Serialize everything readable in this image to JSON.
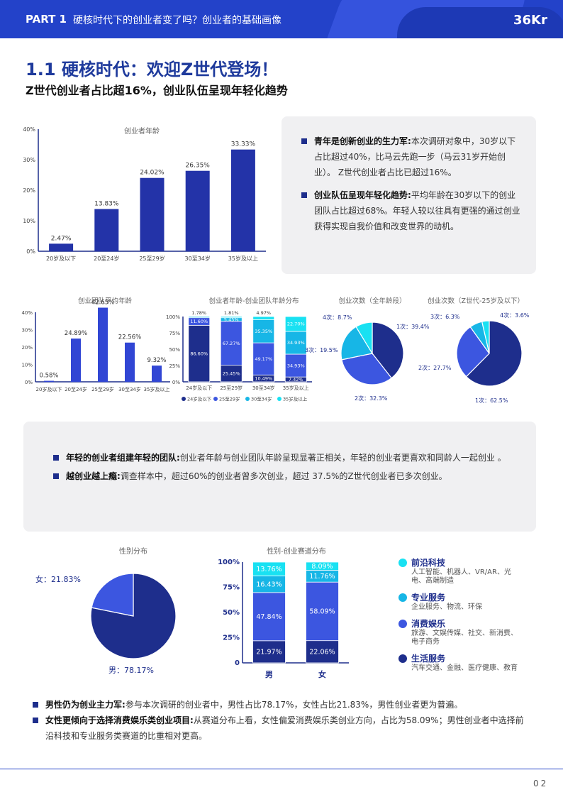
{
  "header": {
    "part": "PART 1",
    "subject": "硬核时代下的创业者变了吗？创业者的基础画像",
    "logo_text": "36Kr"
  },
  "title": "1.1 硬核时代：欢迎Z世代登场！",
  "subtitle": "Z世代创业者占比超16%，创业队伍呈现年轻化趋势",
  "panel1": {
    "items": [
      {
        "bold": "青年是创新创业的生力军:",
        "text": "本次调研对象中，30岁以下占比超过40%，比马云先跑一步（马云31岁开始创业）。 Z世代创业者占比已超过16%。"
      },
      {
        "bold": "创业队伍呈现年轻化趋势:",
        "text": "平均年龄在30岁以下的创业团队占比超过68%。年轻人较以往具有更强的通过创业获得实现自我价值和改变世界的动机。"
      }
    ]
  },
  "panel2": {
    "items": [
      {
        "bold": "年轻的创业者组建年轻的团队:",
        "text": "创业者年龄与创业团队年龄呈现显著正相关，年轻的创业者更喜欢和同龄人一起创业 。"
      },
      {
        "bold": "越创业越上瘾:",
        "text": "调查样本中，超过60%的创业者曾多次创业，超过 37.5%的Z世代创业者已多次创业。"
      }
    ]
  },
  "bottom_notes": {
    "items": [
      {
        "bold": "男性仍为创业主力军:",
        "text": "参与本次调研的创业者中，男性占比78.17%，女性占比21.83%，男性创业者更为普遍。"
      },
      {
        "bold": "女性更倾向于选择消费娱乐类创业项目:",
        "text": "从赛道分布上看，女性偏爱消费娱乐类创业方向，占比为58.09%；男性创业者中选择前沿科技和专业服务类赛道的比重相对更高。"
      }
    ]
  },
  "track_legend": [
    {
      "title": "前沿科技",
      "desc": "人工智能、机器人、VR/AR、光电、高端制造",
      "color": "#19e1f2"
    },
    {
      "title": "专业服务",
      "desc": "企业服务、物流、环保",
      "color": "#17b6e6"
    },
    {
      "title": "消费娱乐",
      "desc": "旅游、文娱传媒、社交、新消费、电子商务",
      "color": "#3c56e0"
    },
    {
      "title": "生活服务",
      "desc": "汽车交通、金融、医疗健康、教育",
      "color": "#1e2e8c"
    }
  ],
  "page_number": "02",
  "chart_data": [
    {
      "id": "founder_age",
      "type": "bar",
      "title": "创业者年龄",
      "categories": [
        "20岁及以下",
        "20至24岁",
        "25至29岁",
        "30至34岁",
        "35岁及以上"
      ],
      "values": [
        2.47,
        13.83,
        24.02,
        26.35,
        33.33
      ],
      "ylim": [
        0,
        40
      ],
      "yticks": [
        "0%",
        "10%",
        "20%",
        "30%",
        "40%"
      ],
      "value_labels": [
        "2.47%",
        "13.83%",
        "24.02%",
        "26.35%",
        "33.33%"
      ],
      "color": "#2333a8"
    },
    {
      "id": "team_avg_age",
      "type": "bar",
      "title": "创业团队平均年龄",
      "categories": [
        "20岁及以下",
        "20至24岁",
        "25至29岁",
        "30至34岁",
        "35岁及以上"
      ],
      "values": [
        0.58,
        24.89,
        42.65,
        22.56,
        9.32
      ],
      "ylim": [
        0,
        40
      ],
      "yticks": [
        "0%",
        "10%",
        "20%",
        "30%",
        "40%"
      ],
      "value_labels": [
        "0.58%",
        "24.89%",
        "42.65%",
        "22.56%",
        "9.32%"
      ],
      "color": "#3146d4"
    },
    {
      "id": "age_vs_team",
      "type": "bar",
      "stacked": true,
      "title": "创业者年龄-创业团队年龄分布",
      "categories": [
        "24岁及以下",
        "25至29岁",
        "30至34岁",
        "35岁及以上"
      ],
      "yticks": [
        "0%",
        "25%",
        "50%",
        "75%",
        "100%"
      ],
      "series": [
        {
          "name": "24岁及以下",
          "values": [
            86.6,
            25.45,
            10.49,
            7.42
          ],
          "labels": [
            "86.60%",
            "25.45%",
            "10.49%",
            "7.42%"
          ],
          "color": "#1e2e8c"
        },
        {
          "name": "25至29岁",
          "values": [
            11.6,
            67.27,
            49.17,
            34.93
          ],
          "labels": [
            "11.60%",
            "67.27%",
            "49.17%",
            "34.93%"
          ],
          "color": "#3c56e0"
        },
        {
          "name": "30至34岁",
          "values": [
            1.78,
            5.45,
            35.35,
            34.93
          ],
          "labels": [
            "",
            "5.45%",
            "35.35%",
            "34.93%"
          ],
          "color": "#17b6e6"
        },
        {
          "name": "35岁及以上",
          "values": [
            0.02,
            1.81,
            4.97,
            22.7
          ],
          "labels": [
            "",
            "",
            "",
            "22.70%"
          ],
          "color": "#19e1f2"
        }
      ],
      "top_labels": [
        "1.78%",
        "1.81%",
        "4.97%",
        ""
      ]
    },
    {
      "id": "times_all",
      "type": "pie",
      "title": "创业次数（全年龄段）",
      "labels": [
        "1次",
        "2次",
        "3次",
        "4次"
      ],
      "values": [
        39.4,
        32.3,
        19.5,
        8.7
      ],
      "value_labels": [
        "1次：39.4%",
        "2次：32.3%",
        "3次：19.5%",
        "4次：8.7%"
      ],
      "colors": [
        "#1e2e8c",
        "#3c56e0",
        "#17b6e6",
        "#19e1f2"
      ]
    },
    {
      "id": "times_genz",
      "type": "pie",
      "title": "创业次数（Z世代-25岁及以下）",
      "labels": [
        "1次",
        "2次",
        "3次",
        "4次"
      ],
      "values": [
        62.5,
        27.7,
        6.3,
        3.6
      ],
      "value_labels": [
        "1次：62.5%",
        "2次：27.7%",
        "3次：6.3%",
        "4次：3.6%"
      ],
      "colors": [
        "#1e2e8c",
        "#3c56e0",
        "#17b6e6",
        "#19e1f2"
      ]
    },
    {
      "id": "gender",
      "type": "pie",
      "title": "性别分布",
      "labels": [
        "男",
        "女"
      ],
      "values": [
        78.17,
        21.83
      ],
      "value_labels": [
        "男：78.17%",
        "女：21.83%"
      ],
      "colors": [
        "#1e2e8c",
        "#3c56e0"
      ]
    },
    {
      "id": "gender_track",
      "type": "bar",
      "stacked": true,
      "title": "性别-创业赛道分布",
      "categories": [
        "男",
        "女"
      ],
      "yticks": [
        "0",
        "25%",
        "50%",
        "75%",
        "100%"
      ],
      "series": [
        {
          "name": "生活服务",
          "values": [
            21.97,
            22.06
          ],
          "labels": [
            "21.97%",
            "22.06%"
          ],
          "color": "#1e2e8c"
        },
        {
          "name": "消费娱乐",
          "values": [
            47.84,
            58.09
          ],
          "labels": [
            "47.84%",
            "58.09%"
          ],
          "color": "#3c56e0"
        },
        {
          "name": "专业服务",
          "values": [
            16.43,
            11.76
          ],
          "labels": [
            "16.43%",
            "11.76%"
          ],
          "color": "#17b6e6"
        },
        {
          "name": "前沿科技",
          "values": [
            13.76,
            8.09
          ],
          "labels": [
            "13.76%",
            "8.09%"
          ],
          "color": "#19e1f2"
        }
      ]
    }
  ]
}
